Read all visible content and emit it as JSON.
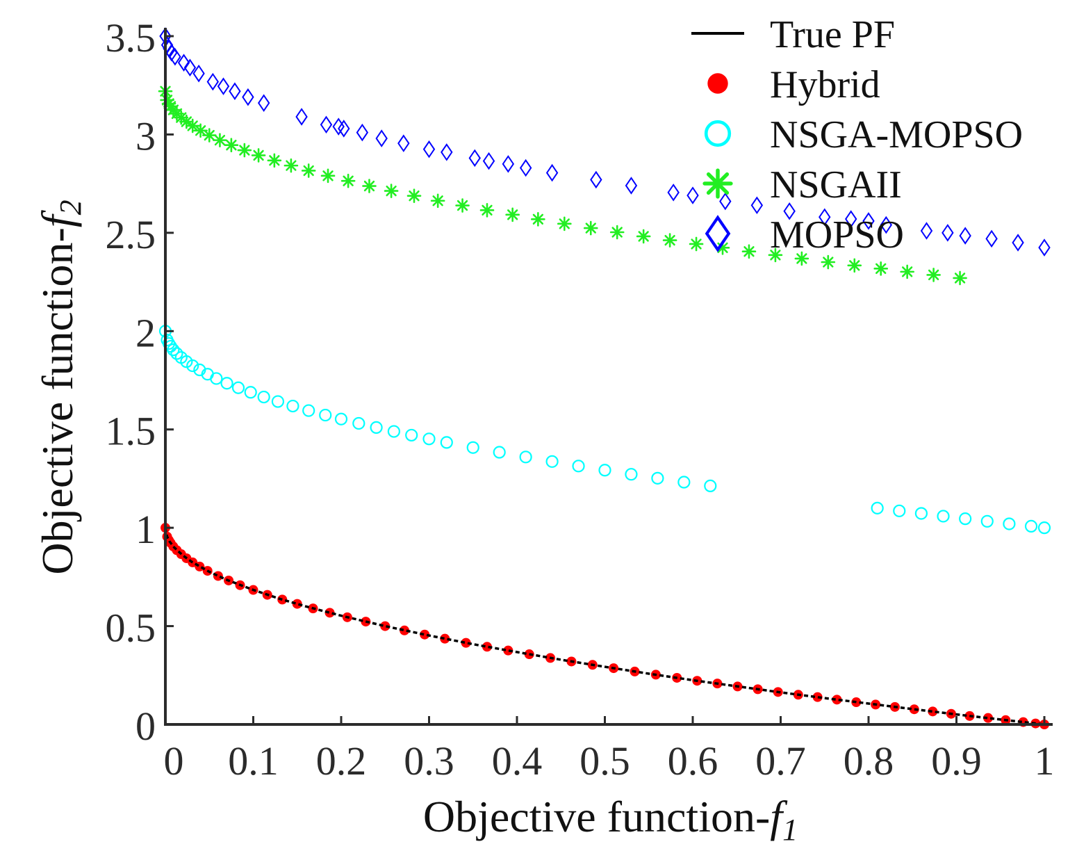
{
  "chart_data": {
    "type": "scatter",
    "title": "",
    "xlabel_main": "Objective function-",
    "xlabel_italic": "f",
    "xlabel_sub": "1",
    "ylabel_main": "Objective function-",
    "ylabel_italic": "f",
    "ylabel_sub": "2",
    "xlim": [
      0,
      1
    ],
    "ylim": [
      0,
      3.5
    ],
    "grid": false,
    "legend_position": "top-right",
    "x_ticks": [
      0,
      0.1,
      0.2,
      0.3,
      0.4,
      0.5,
      0.6,
      0.7,
      0.8,
      0.9,
      1
    ],
    "x_tick_labels": [
      "0",
      "0.1",
      "0.2",
      "0.3",
      "0.4",
      "0.5",
      "0.6",
      "0.7",
      "0.8",
      "0.9",
      "1"
    ],
    "y_ticks": [
      0,
      0.5,
      1,
      1.5,
      2,
      2.5,
      3,
      3.5
    ],
    "y_tick_labels": [
      "0",
      "0.5",
      "1",
      "1.5",
      "2",
      "2.5",
      "3",
      "3.5"
    ],
    "series": [
      {
        "name": "True PF",
        "marker": "line",
        "color": "#000000",
        "formula": "f2 = 1 - sqrt(f1)",
        "x": [
          0,
          0.002,
          0.005,
          0.01,
          0.02,
          0.03,
          0.05,
          0.07,
          0.1,
          0.13,
          0.16,
          0.2,
          0.25,
          0.3,
          0.35,
          0.4,
          0.45,
          0.5,
          0.55,
          0.6,
          0.65,
          0.7,
          0.75,
          0.8,
          0.85,
          0.9,
          0.95,
          1
        ],
        "y": [
          1.0,
          0.955,
          0.929,
          0.9,
          0.859,
          0.827,
          0.776,
          0.735,
          0.684,
          0.639,
          0.6,
          0.553,
          0.5,
          0.452,
          0.408,
          0.368,
          0.329,
          0.293,
          0.258,
          0.225,
          0.194,
          0.163,
          0.134,
          0.106,
          0.078,
          0.051,
          0.025,
          0.0
        ]
      },
      {
        "name": "Hybrid",
        "marker": "filled-circle",
        "color": "#ff0000",
        "x": [
          0,
          0.002,
          0.004,
          0.006,
          0.009,
          0.013,
          0.018,
          0.024,
          0.031,
          0.039,
          0.048,
          0.06,
          0.072,
          0.085,
          0.1,
          0.116,
          0.133,
          0.15,
          0.168,
          0.187,
          0.207,
          0.228,
          0.25,
          0.272,
          0.295,
          0.318,
          0.342,
          0.366,
          0.39,
          0.414,
          0.438,
          0.462,
          0.486,
          0.51,
          0.534,
          0.558,
          0.582,
          0.605,
          0.628,
          0.651,
          0.674,
          0.697,
          0.72,
          0.742,
          0.764,
          0.786,
          0.808,
          0.83,
          0.852,
          0.873,
          0.894,
          0.915,
          0.936,
          0.956,
          0.976,
          0.99,
          1
        ],
        "y": [
          1.0,
          0.955,
          0.937,
          0.923,
          0.905,
          0.886,
          0.866,
          0.845,
          0.824,
          0.803,
          0.781,
          0.755,
          0.732,
          0.708,
          0.684,
          0.659,
          0.635,
          0.613,
          0.59,
          0.568,
          0.545,
          0.523,
          0.5,
          0.478,
          0.457,
          0.436,
          0.415,
          0.395,
          0.376,
          0.357,
          0.338,
          0.32,
          0.303,
          0.286,
          0.269,
          0.253,
          0.237,
          0.222,
          0.208,
          0.193,
          0.179,
          0.165,
          0.151,
          0.139,
          0.126,
          0.113,
          0.101,
          0.089,
          0.077,
          0.066,
          0.054,
          0.043,
          0.033,
          0.022,
          0.012,
          0.005,
          0.0
        ]
      },
      {
        "name": "NSGA-MOPSO",
        "marker": "open-circle",
        "color": "#00ffff",
        "x": [
          0,
          0.002,
          0.004,
          0.006,
          0.009,
          0.013,
          0.018,
          0.024,
          0.031,
          0.039,
          0.048,
          0.058,
          0.07,
          0.083,
          0.097,
          0.112,
          0.128,
          0.145,
          0.163,
          0.182,
          0.2,
          0.22,
          0.24,
          0.26,
          0.28,
          0.3,
          0.32,
          0.35,
          0.38,
          0.41,
          0.44,
          0.47,
          0.5,
          0.53,
          0.56,
          0.59,
          0.62,
          0.81,
          0.835,
          0.86,
          0.885,
          0.91,
          0.935,
          0.96,
          0.985,
          1
        ],
        "y": [
          2.0,
          1.955,
          1.937,
          1.923,
          1.905,
          1.886,
          1.866,
          1.845,
          1.824,
          1.803,
          1.781,
          1.759,
          1.735,
          1.712,
          1.689,
          1.665,
          1.642,
          1.619,
          1.596,
          1.573,
          1.553,
          1.531,
          1.51,
          1.49,
          1.471,
          1.452,
          1.434,
          1.408,
          1.384,
          1.36,
          1.337,
          1.314,
          1.293,
          1.272,
          1.252,
          1.232,
          1.213,
          1.1,
          1.086,
          1.073,
          1.059,
          1.046,
          1.033,
          1.02,
          1.008,
          1.0
        ]
      },
      {
        "name": "NSGAII",
        "marker": "asterisk",
        "color": "#22ee22",
        "x": [
          0,
          0.002,
          0.004,
          0.006,
          0.009,
          0.013,
          0.018,
          0.024,
          0.031,
          0.04,
          0.05,
          0.062,
          0.075,
          0.09,
          0.106,
          0.124,
          0.143,
          0.163,
          0.185,
          0.208,
          0.232,
          0.257,
          0.283,
          0.31,
          0.338,
          0.366,
          0.395,
          0.424,
          0.454,
          0.484,
          0.514,
          0.544,
          0.574,
          0.604,
          0.634,
          0.664,
          0.694,
          0.724,
          0.754,
          0.784,
          0.814,
          0.844,
          0.874,
          0.904
        ],
        "y": [
          3.22,
          3.175,
          3.157,
          3.143,
          3.125,
          3.106,
          3.086,
          3.065,
          3.044,
          3.02,
          2.996,
          2.971,
          2.946,
          2.92,
          2.894,
          2.868,
          2.842,
          2.816,
          2.79,
          2.764,
          2.738,
          2.713,
          2.688,
          2.663,
          2.639,
          2.615,
          2.592,
          2.569,
          2.546,
          2.524,
          2.503,
          2.482,
          2.462,
          2.443,
          2.424,
          2.405,
          2.387,
          2.369,
          2.351,
          2.334,
          2.318,
          2.302,
          2.286,
          2.27
        ]
      },
      {
        "name": "MOPSO",
        "marker": "open-diamond",
        "color": "#0000ff",
        "x": [
          0,
          0.002,
          0.004,
          0.007,
          0.011,
          0.021,
          0.028,
          0.038,
          0.054,
          0.066,
          0.079,
          0.094,
          0.112,
          0.155,
          0.183,
          0.197,
          0.203,
          0.224,
          0.246,
          0.271,
          0.3,
          0.32,
          0.352,
          0.368,
          0.39,
          0.41,
          0.44,
          0.49,
          0.53,
          0.578,
          0.6,
          0.637,
          0.673,
          0.71,
          0.75,
          0.78,
          0.8,
          0.82,
          0.866,
          0.89,
          0.91,
          0.94,
          0.97,
          1
        ],
        "y": [
          3.5,
          3.455,
          3.437,
          3.416,
          3.395,
          3.365,
          3.34,
          3.31,
          3.268,
          3.245,
          3.22,
          3.19,
          3.16,
          3.09,
          3.05,
          3.04,
          3.03,
          3.01,
          2.98,
          2.955,
          2.925,
          2.91,
          2.88,
          2.865,
          2.85,
          2.83,
          2.805,
          2.77,
          2.74,
          2.705,
          2.69,
          2.66,
          2.64,
          2.61,
          2.58,
          2.57,
          2.56,
          2.54,
          2.51,
          2.5,
          2.485,
          2.47,
          2.45,
          2.425
        ]
      }
    ]
  }
}
